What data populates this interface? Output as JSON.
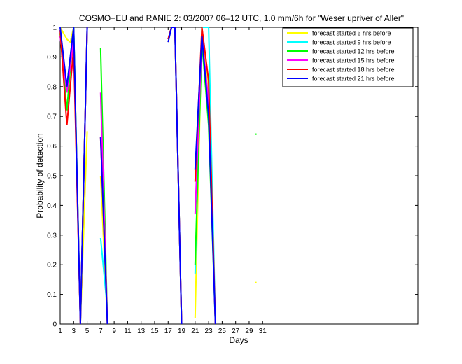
{
  "chart_data": {
    "type": "line",
    "title": "COSMO−EU and RANIE 2: 03/2007 06–12 UTC, 1.0 mm/6h for \"Weser upriver of Aller\"",
    "xlabel": "Days",
    "ylabel": "Probability of detection",
    "xlim": [
      1,
      54
    ],
    "ylim": [
      0,
      1
    ],
    "xticks": [
      1,
      3,
      5,
      7,
      9,
      11,
      13,
      15,
      17,
      19,
      21,
      23,
      25,
      27,
      29,
      31
    ],
    "yticks": [
      0,
      0.1,
      0.2,
      0.3,
      0.4,
      0.5,
      0.6,
      0.7,
      0.8,
      0.9,
      1
    ],
    "legend_position": "top-right",
    "grid": false,
    "series": [
      {
        "name": "forecast started 6 hrs before",
        "color": "#ffff00",
        "segments": [
          [
            [
              1,
              1
            ],
            [
              2,
              0.96
            ],
            [
              2.5,
              0.95
            ],
            [
              3,
              1
            ],
            [
              4,
              0
            ],
            [
              5,
              0.65
            ]
          ],
          [
            [
              7,
              0.5
            ],
            [
              8,
              0
            ]
          ],
          [
            [
              17,
              0.95
            ],
            [
              17.5,
              1
            ],
            [
              18,
              1
            ],
            [
              19,
              0
            ]
          ],
          [
            [
              21,
              0.02
            ],
            [
              22,
              1
            ],
            [
              23,
              0.8
            ],
            [
              24,
              0
            ]
          ]
        ],
        "points": [
          [
            30,
            0.14
          ]
        ]
      },
      {
        "name": "forecast started 9 hrs before",
        "color": "#00ffff",
        "segments": [
          [
            [
              1,
              0.97
            ],
            [
              2,
              0.8
            ],
            [
              3,
              1
            ],
            [
              4,
              0
            ],
            [
              5,
              1
            ]
          ],
          [
            [
              7,
              0.29
            ],
            [
              8,
              0.05
            ]
          ],
          [
            [
              17,
              0.96
            ],
            [
              17.5,
              1
            ],
            [
              18,
              1
            ],
            [
              19,
              0
            ]
          ],
          [
            [
              21,
              0.17
            ],
            [
              22,
              1
            ],
            [
              23,
              1
            ],
            [
              24,
              0
            ]
          ]
        ],
        "points": []
      },
      {
        "name": "forecast started 12 hrs before",
        "color": "#00ff00",
        "segments": [
          [
            [
              1,
              0.98
            ],
            [
              2,
              0.72
            ],
            [
              3,
              1
            ],
            [
              4,
              0
            ],
            [
              5,
              1
            ]
          ],
          [
            [
              7,
              0.93
            ],
            [
              8,
              0
            ]
          ],
          [
            [
              17,
              0.96
            ],
            [
              17.5,
              1
            ],
            [
              18,
              1
            ],
            [
              19,
              0
            ]
          ],
          [
            [
              21,
              0.2
            ],
            [
              22,
              0.95
            ],
            [
              23,
              0.67
            ],
            [
              24,
              0
            ]
          ]
        ],
        "points": [
          [
            30,
            0.64
          ]
        ]
      },
      {
        "name": "forecast started 15 hrs before",
        "color": "#ff00ff",
        "segments": [
          [
            [
              1,
              0.97
            ],
            [
              2,
              0.78
            ],
            [
              3,
              0.96
            ],
            [
              4,
              0
            ],
            [
              5,
              1
            ]
          ],
          [
            [
              7,
              0.78
            ],
            [
              8,
              0
            ]
          ],
          [
            [
              17,
              0.96
            ],
            [
              17.5,
              1
            ],
            [
              18,
              1
            ],
            [
              19,
              0
            ]
          ],
          [
            [
              21,
              0.37
            ],
            [
              22,
              0.97
            ],
            [
              23,
              0.75
            ],
            [
              24,
              0
            ]
          ]
        ],
        "points": []
      },
      {
        "name": "forecast started 18 hrs before",
        "color": "#ff0000",
        "segments": [
          [
            [
              1,
              0.99
            ],
            [
              2,
              0.67
            ],
            [
              3,
              0.93
            ],
            [
              4,
              0
            ],
            [
              5,
              1
            ]
          ],
          [
            [
              7,
              0.63
            ],
            [
              8,
              0
            ]
          ],
          [
            [
              17,
              0.96
            ],
            [
              17.5,
              1
            ],
            [
              18,
              1
            ],
            [
              19,
              0
            ]
          ],
          [
            [
              21,
              0.48
            ],
            [
              22,
              1
            ],
            [
              23,
              0.82
            ],
            [
              24,
              0
            ]
          ]
        ],
        "points": []
      },
      {
        "name": "forecast started 21 hrs before",
        "color": "#0000ff",
        "segments": [
          [
            [
              1,
              1
            ],
            [
              2,
              0.8
            ],
            [
              3,
              1
            ],
            [
              4,
              0
            ],
            [
              5,
              1
            ]
          ],
          [
            [
              7,
              0.63
            ],
            [
              8,
              0
            ]
          ],
          [
            [
              17,
              0.95
            ],
            [
              17.5,
              1
            ],
            [
              18,
              1
            ],
            [
              19,
              0
            ]
          ],
          [
            [
              21,
              0.52
            ],
            [
              22,
              0.97
            ],
            [
              23,
              0.7
            ],
            [
              24,
              0
            ]
          ]
        ],
        "points": []
      }
    ]
  }
}
